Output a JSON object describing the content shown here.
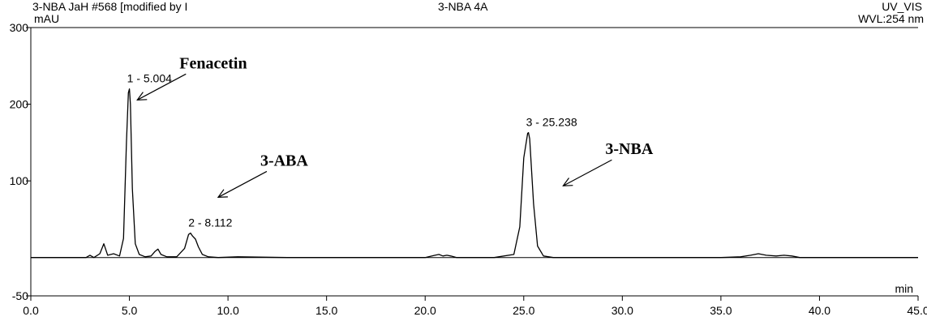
{
  "header": {
    "left": "3-NBA JaH #568 [modified by I",
    "center": "3-NBA 4A",
    "right": "UV_VIS",
    "wavelength": "WVL:254 nm"
  },
  "chart_data": {
    "type": "line",
    "xlabel": "min",
    "ylabel": "mAU",
    "xlim": [
      0,
      45
    ],
    "ylim": [
      -50,
      300
    ],
    "x_ticks": [
      "0.0",
      "5.0",
      "10.0",
      "15.0",
      "20.0",
      "25.0",
      "30.0",
      "35.0",
      "40.0",
      "45.0"
    ],
    "y_ticks": [
      "-50",
      "100",
      "200",
      "300"
    ],
    "grid": false,
    "series": [
      {
        "x": [
          0,
          2.8,
          3.0,
          3.2,
          3.5,
          3.7,
          3.9,
          4.2,
          4.5,
          4.7,
          4.85,
          4.95,
          5.0,
          5.05,
          5.15,
          5.3,
          5.5,
          5.8,
          6.1,
          6.3,
          6.45,
          6.6,
          6.9,
          7.4,
          7.8,
          8.0,
          8.1,
          8.2,
          8.35,
          8.5,
          8.7,
          9.0,
          9.5,
          10.5,
          13.0,
          16.0,
          20.0,
          20.5,
          20.7,
          20.9,
          21.1,
          21.3,
          21.6,
          22.0,
          23.5,
          24.5,
          24.8,
          25.0,
          25.2,
          25.24,
          25.3,
          25.5,
          25.7,
          26.0,
          26.5,
          30.0,
          35.0,
          36.0,
          36.5,
          36.9,
          37.3,
          37.8,
          38.2,
          38.6,
          39.0,
          40.0,
          45.0
        ],
        "y": [
          0,
          0,
          3,
          0,
          5,
          18,
          3,
          5,
          2,
          25,
          150,
          215,
          220,
          200,
          90,
          18,
          4,
          1,
          2,
          8,
          11,
          4,
          1,
          1,
          12,
          30,
          32,
          28,
          24,
          14,
          4,
          1,
          0,
          1,
          0,
          0,
          0,
          3,
          4,
          2,
          3,
          2,
          0,
          0,
          0,
          4,
          40,
          130,
          162,
          163,
          155,
          70,
          15,
          2,
          0,
          0,
          0,
          1,
          3,
          5,
          3,
          2,
          3,
          2,
          0,
          0,
          0
        ]
      }
    ],
    "peak_labels": [
      {
        "x": 5.004,
        "y": 220,
        "text": "1 - 5.004"
      },
      {
        "x": 8.112,
        "y": 32,
        "text": "2 - 8.112"
      },
      {
        "x": 25.238,
        "y": 163,
        "text": "3 - 25.238"
      }
    ],
    "annotations": [
      {
        "text": "Fenacetin",
        "x": 5.4,
        "y": 232
      },
      {
        "text": "3-ABA",
        "x": 9.5,
        "y": 105
      },
      {
        "text": "3-NBA",
        "x": 27.0,
        "y": 120
      }
    ]
  }
}
